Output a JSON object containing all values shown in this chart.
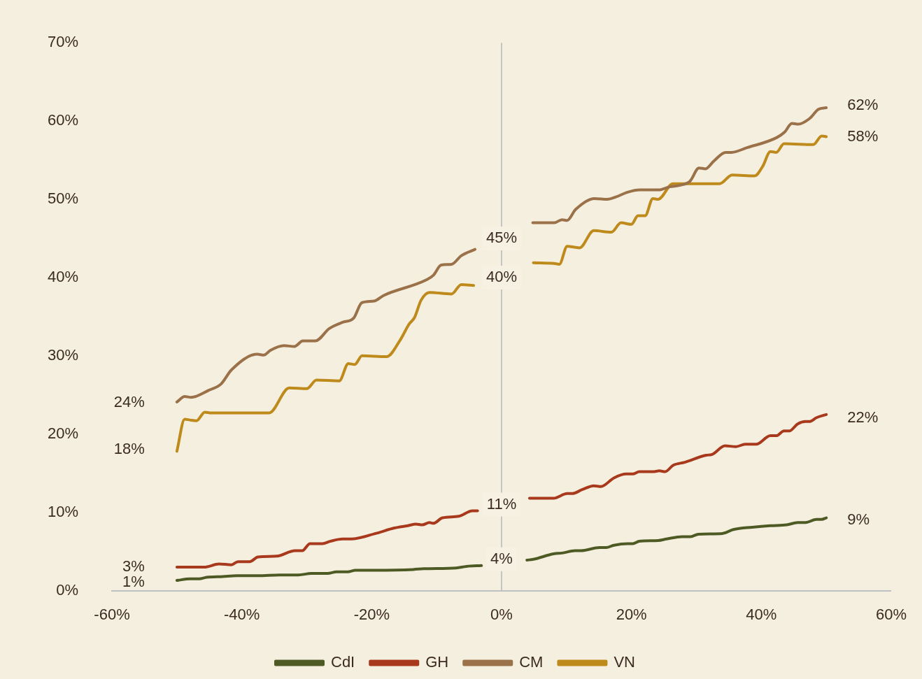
{
  "chart_data": {
    "type": "line",
    "xlim": [
      -60,
      60
    ],
    "ylim": [
      0,
      70
    ],
    "xticks": [
      {
        "value": -60,
        "label": "-60%"
      },
      {
        "value": -40,
        "label": "-40%"
      },
      {
        "value": -20,
        "label": "-20%"
      },
      {
        "value": 0,
        "label": "0%"
      },
      {
        "value": 20,
        "label": "20%"
      },
      {
        "value": 40,
        "label": "40%"
      },
      {
        "value": 60,
        "label": "60%"
      }
    ],
    "yticks": [
      {
        "value": 0,
        "label": "0%"
      },
      {
        "value": 10,
        "label": "10%"
      },
      {
        "value": 20,
        "label": "20%"
      },
      {
        "value": 30,
        "label": "30%"
      },
      {
        "value": 40,
        "label": "40%"
      },
      {
        "value": 50,
        "label": "50%"
      },
      {
        "value": 60,
        "label": "60%"
      },
      {
        "value": 70,
        "label": "70%"
      }
    ],
    "legend": "bottom",
    "marker": "none",
    "line_style": "solid",
    "ref_lines": [
      {
        "axis": "x",
        "value": 0,
        "color": "#c4c4c4"
      }
    ],
    "series": [
      {
        "name": "CdI",
        "color": "#4e5a24",
        "x": [
          -50,
          -48,
          -46.6,
          -45.4,
          -42.9,
          -40.8,
          -37.5,
          -34.2,
          -31.3,
          -29.3,
          -26.8,
          -25.4,
          -23.7,
          -22.5,
          -19.4,
          -13.6,
          -12,
          -7,
          -5.4,
          -3.1,
          0,
          3.9,
          4.9,
          8,
          9.3,
          11.3,
          12.2,
          15.1,
          16.1,
          17.3,
          19.4,
          20.2,
          21.2,
          24.1,
          25.4,
          27.8,
          29.1,
          30.3,
          34,
          35.7,
          38.6,
          41.4,
          43.9,
          45.6,
          46.8,
          48.5,
          49.3,
          50
        ],
        "values": [
          1.3,
          1.5,
          1.5,
          1.7,
          1.8,
          1.9,
          1.9,
          2,
          2,
          2.2,
          2.2,
          2.4,
          2.4,
          2.6,
          2.6,
          2.7,
          2.8,
          2.9,
          3.1,
          3.2,
          null,
          3.9,
          4,
          4.7,
          4.8,
          5.1,
          5.1,
          5.5,
          5.5,
          5.8,
          6,
          6,
          6.3,
          6.4,
          6.6,
          6.9,
          6.9,
          7.2,
          7.3,
          7.8,
          8.1,
          8.3,
          8.4,
          8.7,
          8.7,
          9.1,
          9.1,
          9.3
        ]
      },
      {
        "name": "GH",
        "color": "#a8391c",
        "x": [
          -50,
          -45.8,
          -43.5,
          -41.6,
          -40.6,
          -38.8,
          -37.5,
          -34.6,
          -31.8,
          -30.7,
          -29.5,
          -27.6,
          -26.4,
          -24.5,
          -23.1,
          -19.4,
          -16.5,
          -14.4,
          -13.2,
          -12.2,
          -11.1,
          -10.5,
          -9.1,
          -6.6,
          -4.5,
          -3.7,
          0,
          4.3,
          8,
          10.1,
          10.9,
          12.4,
          14.2,
          15.3,
          17.3,
          19.2,
          20.2,
          21.2,
          23.3,
          24.3,
          25.2,
          26.4,
          28.2,
          31.5,
          32.4,
          34.4,
          36.1,
          37.5,
          39.2,
          41.4,
          42.3,
          43.5,
          44.3,
          45.6,
          46.8,
          47.4,
          48.5,
          50
        ],
        "values": [
          3,
          3,
          3.4,
          3.3,
          3.7,
          3.7,
          4.3,
          4.4,
          5.1,
          5.1,
          6,
          6,
          6.3,
          6.6,
          6.6,
          7.3,
          8,
          8.3,
          8.5,
          8.4,
          8.7,
          8.6,
          9.3,
          9.5,
          10.2,
          10.2,
          null,
          11.8,
          11.8,
          12.4,
          12.4,
          12.9,
          13.4,
          13.3,
          14.4,
          14.9,
          14.9,
          15.2,
          15.2,
          15.3,
          15.2,
          16,
          16.4,
          17.3,
          17.4,
          18.5,
          18.4,
          18.7,
          18.7,
          19.8,
          19.8,
          20.4,
          20.4,
          21.3,
          21.6,
          21.6,
          22.1,
          22.5
        ]
      },
      {
        "name": "CM",
        "color": "#9a7149",
        "x": [
          -50,
          -48.8,
          -47.8,
          -45.1,
          -43.2,
          -41.6,
          -37.6,
          -36.6,
          -35.6,
          -33.5,
          -31.9,
          -30.6,
          -28.7,
          -26.5,
          -24.4,
          -22.8,
          -21.5,
          -19.6,
          -18.2,
          -11.6,
          -10.5,
          -9.3,
          -7.7,
          -6.2,
          -4.1,
          0,
          4.8,
          8.1,
          9.3,
          10.1,
          11.4,
          14.3,
          16.3,
          17.6,
          19.4,
          21.3,
          24.2,
          25.9,
          27.5,
          29,
          30.4,
          31.4,
          32.7,
          34.5,
          35.4,
          37.8,
          42.4,
          43.6,
          44.7,
          45.7,
          47.4,
          48.8,
          50
        ],
        "values": [
          24.1,
          24.8,
          24.7,
          25.6,
          26.4,
          28.2,
          30.2,
          30.1,
          30.7,
          31.3,
          31.2,
          31.9,
          31.9,
          33.5,
          34.3,
          34.8,
          36.8,
          37,
          37.7,
          39.7,
          40.3,
          41.6,
          41.7,
          42.8,
          43.6,
          null,
          47,
          47,
          47.4,
          47.3,
          48.7,
          50.1,
          50,
          50.3,
          50.9,
          51.2,
          51.2,
          51.6,
          51.8,
          52.3,
          54,
          53.9,
          54.9,
          56,
          56,
          56.6,
          57.9,
          58.6,
          59.7,
          59.6,
          60.3,
          61.5,
          61.7
        ]
      },
      {
        "name": "VN",
        "color": "#be8a1c",
        "x": [
          -50,
          -48.8,
          -48,
          -47,
          -45.7,
          -44.7,
          -36.8,
          -35.8,
          -32.7,
          -30,
          -28.5,
          -25,
          -23.6,
          -22.6,
          -21.5,
          -17.7,
          -15.7,
          -14.2,
          -13.4,
          -12.4,
          -11.1,
          -7.7,
          -6.2,
          -4.3,
          0,
          4.9,
          8.1,
          8.9,
          10.1,
          12,
          14.2,
          16.9,
          18.4,
          20,
          21,
          22.1,
          23.3,
          24.1,
          26.4,
          33.6,
          35.5,
          39,
          40.2,
          41.4,
          42.3,
          43.5,
          48,
          49.3,
          50
        ],
        "values": [
          17.8,
          21.9,
          21.8,
          21.7,
          22.8,
          22.7,
          22.7,
          22.7,
          25.9,
          25.8,
          26.9,
          26.8,
          29,
          28.9,
          30,
          29.9,
          31.9,
          34.1,
          34.9,
          37.1,
          38.1,
          37.9,
          39.1,
          39,
          null,
          41.9,
          41.8,
          41.7,
          44,
          43.8,
          46,
          45.8,
          47,
          46.8,
          47.9,
          47.9,
          50.1,
          50,
          52,
          52,
          53.1,
          53,
          54.2,
          56.1,
          56,
          57.1,
          57,
          58.1,
          58
        ]
      }
    ],
    "annotations": [
      {
        "text": "24%",
        "x": -50,
        "y": 24
      },
      {
        "text": "18%",
        "x": -50,
        "y": 18
      },
      {
        "text": "3%",
        "x": -50,
        "y": 3
      },
      {
        "text": "1%",
        "x": -50,
        "y": 1
      },
      {
        "text": "45%",
        "x": 0,
        "y": 45
      },
      {
        "text": "40%",
        "x": 0,
        "y": 40
      },
      {
        "text": "11%",
        "x": 0,
        "y": 11
      },
      {
        "text": "4%",
        "x": 0,
        "y": 4
      },
      {
        "text": "62%",
        "x": 50,
        "y": 62
      },
      {
        "text": "58%",
        "x": 50,
        "y": 58
      },
      {
        "text": "22%",
        "x": 50,
        "y": 22
      },
      {
        "text": "9%",
        "x": 50,
        "y": 9
      }
    ]
  }
}
